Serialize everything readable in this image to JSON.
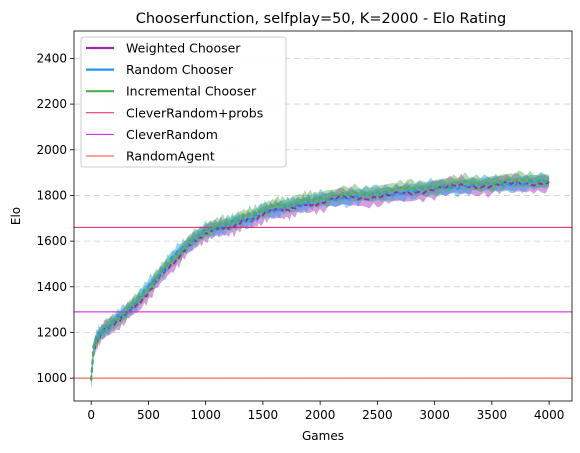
{
  "chart_data": {
    "type": "line",
    "title": "Chooserfunction, selfplay=50, K=2000 - Elo Rating",
    "xlabel": "Games",
    "ylabel": "Elo",
    "xlim": [
      -150,
      4200
    ],
    "ylim": [
      900,
      2520
    ],
    "xticks": [
      0,
      500,
      1000,
      1500,
      2000,
      2500,
      3000,
      3500,
      4000
    ],
    "yticks": [
      1000,
      1200,
      1400,
      1600,
      1800,
      2000,
      2200,
      2400
    ],
    "grid": "horizontal dashed",
    "legend_position": "upper-left",
    "series": [
      {
        "name": "Weighted Chooser",
        "color": "#9c27b0",
        "x": [
          0,
          20,
          50,
          100,
          200,
          300,
          400,
          500,
          600,
          700,
          800,
          900,
          1000,
          1100,
          1200,
          1300,
          1400,
          1500,
          1600,
          1700,
          1800,
          1900,
          2000,
          2200,
          2400,
          2600,
          2800,
          3000,
          3200,
          3400,
          3600,
          3800,
          4000
        ],
        "y": [
          990,
          1120,
          1170,
          1200,
          1240,
          1280,
          1320,
          1380,
          1440,
          1500,
          1550,
          1600,
          1640,
          1650,
          1665,
          1680,
          1690,
          1720,
          1730,
          1740,
          1750,
          1760,
          1770,
          1790,
          1790,
          1800,
          1810,
          1830,
          1840,
          1840,
          1850,
          1850,
          1860
        ],
        "band": 45
      },
      {
        "name": "Random Chooser",
        "color": "#2196f3",
        "x": [
          0,
          20,
          50,
          100,
          200,
          300,
          400,
          500,
          600,
          700,
          800,
          900,
          1000,
          1100,
          1200,
          1300,
          1400,
          1500,
          1600,
          1700,
          1800,
          1900,
          2000,
          2200,
          2400,
          2600,
          2800,
          3000,
          3200,
          3400,
          3600,
          3800,
          4000
        ],
        "y": [
          990,
          1130,
          1180,
          1210,
          1250,
          1290,
          1340,
          1400,
          1460,
          1520,
          1570,
          1610,
          1645,
          1660,
          1670,
          1690,
          1700,
          1730,
          1740,
          1750,
          1760,
          1770,
          1780,
          1790,
          1800,
          1810,
          1820,
          1830,
          1840,
          1845,
          1850,
          1855,
          1860
        ],
        "band": 40
      },
      {
        "name": "Incremental Chooser",
        "color": "#4caf50",
        "x": [
          0,
          20,
          50,
          100,
          200,
          300,
          400,
          500,
          600,
          700,
          800,
          900,
          1000,
          1100,
          1200,
          1300,
          1400,
          1500,
          1600,
          1700,
          1800,
          1900,
          2000,
          2200,
          2400,
          2600,
          2800,
          3000,
          3200,
          3400,
          3600,
          3800,
          4000
        ],
        "y": [
          990,
          1125,
          1175,
          1205,
          1245,
          1290,
          1335,
          1395,
          1455,
          1515,
          1565,
          1610,
          1650,
          1665,
          1680,
          1700,
          1710,
          1740,
          1750,
          1760,
          1770,
          1780,
          1790,
          1800,
          1810,
          1820,
          1830,
          1840,
          1850,
          1855,
          1860,
          1865,
          1870
        ],
        "band": 40
      }
    ],
    "reference_lines": [
      {
        "name": "CleverRandom+probs",
        "color": "#e91e63",
        "y": 1660
      },
      {
        "name": "CleverRandom",
        "color": "#c21cd6",
        "y": 1290
      },
      {
        "name": "RandomAgent",
        "color": "#f44336",
        "y": 1000
      }
    ]
  }
}
